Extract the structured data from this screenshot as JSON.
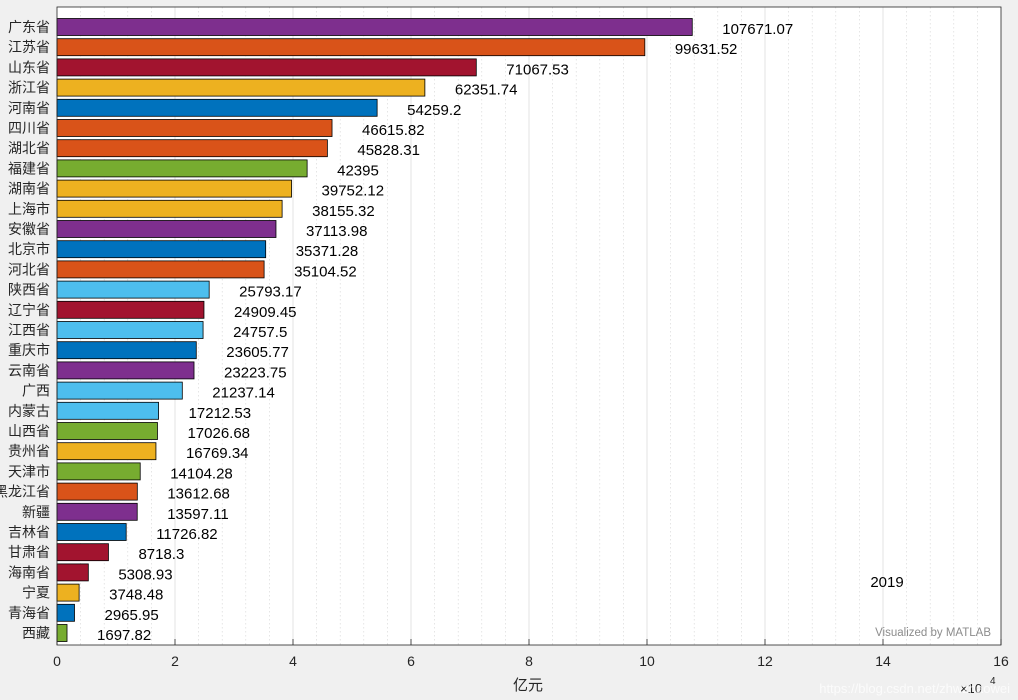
{
  "chart_data": {
    "type": "bar",
    "orientation": "horizontal",
    "categories": [
      "广东省",
      "江苏省",
      "山东省",
      "浙江省",
      "河南省",
      "四川省",
      "湖北省",
      "福建省",
      "湖南省",
      "上海市",
      "安徽省",
      "北京市",
      "河北省",
      "陕西省",
      "辽宁省",
      "江西省",
      "重庆市",
      "云南省",
      "广西",
      "内蒙古",
      "山西省",
      "贵州省",
      "天津市",
      "黑龙江省",
      "新疆",
      "吉林省",
      "甘肃省",
      "海南省",
      "宁夏",
      "青海省",
      "西藏"
    ],
    "values": [
      107671.07,
      99631.52,
      71067.53,
      62351.74,
      54259.2,
      46615.82,
      45828.31,
      42395,
      39752.12,
      38155.32,
      37113.98,
      35371.28,
      35104.52,
      25793.17,
      24909.45,
      24757.5,
      23605.77,
      23223.75,
      21237.14,
      17212.53,
      17026.68,
      16769.34,
      14104.28,
      13612.68,
      13597.11,
      11726.82,
      8718.3,
      5308.93,
      3748.48,
      2965.95,
      1697.82
    ],
    "value_labels": [
      "107671.07",
      "99631.52",
      "71067.53",
      "62351.74",
      "54259.2",
      "46615.82",
      "45828.31",
      "42395",
      "39752.12",
      "38155.32",
      "37113.98",
      "35371.28",
      "35104.52",
      "25793.17",
      "24909.45",
      "24757.5",
      "23605.77",
      "23223.75",
      "21237.14",
      "17212.53",
      "17026.68",
      "16769.34",
      "14104.28",
      "13612.68",
      "13597.11",
      "11726.82",
      "8718.3",
      "5308.93",
      "3748.48",
      "2965.95",
      "1697.82"
    ],
    "bar_colors": [
      "#7E2F8E",
      "#D95319",
      "#A2142F",
      "#EDB120",
      "#0072BD",
      "#D95319",
      "#D95319",
      "#77AC30",
      "#EDB120",
      "#EDB120",
      "#7E2F8E",
      "#0072BD",
      "#D95319",
      "#4DBEEE",
      "#A2142F",
      "#4DBEEE",
      "#0072BD",
      "#7E2F8E",
      "#4DBEEE",
      "#4DBEEE",
      "#77AC30",
      "#EDB120",
      "#77AC30",
      "#D95319",
      "#7E2F8E",
      "#0072BD",
      "#A2142F",
      "#A2142F",
      "#EDB120",
      "#0072BD",
      "#77AC30"
    ],
    "xlabel": "亿元",
    "xlim": [
      0,
      160000
    ],
    "xticks": [
      0,
      20000,
      40000,
      60000,
      80000,
      100000,
      120000,
      140000,
      160000
    ],
    "xtick_labels": [
      "0",
      "2",
      "4",
      "6",
      "8",
      "10",
      "12",
      "14",
      "16"
    ],
    "x_exponent_label": "×10",
    "x_exponent_power": "4",
    "grid": "minor dotted, major solid",
    "annotation": "2019",
    "credit": "Visualized by MATLAB"
  },
  "watermark": "https://blog.csdn.net/zhwzhaowei"
}
